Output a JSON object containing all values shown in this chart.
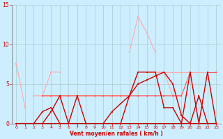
{
  "x": [
    0,
    1,
    2,
    3,
    4,
    5,
    6,
    7,
    8,
    9,
    10,
    11,
    12,
    13,
    14,
    15,
    16,
    17,
    18,
    19,
    20,
    21,
    22,
    23
  ],
  "series": [
    {
      "color": "#ffaaaa",
      "lw": 0.8,
      "values": [
        7.5,
        2.0,
        null,
        null,
        null,
        null,
        null,
        null,
        null,
        null,
        null,
        null,
        null,
        9.0,
        13.5,
        11.5,
        9.0,
        null,
        null,
        null,
        null,
        null,
        null,
        null
      ]
    },
    {
      "color": "#ffaaaa",
      "lw": 0.8,
      "values": [
        null,
        null,
        null,
        3.5,
        6.5,
        6.5,
        null,
        null,
        null,
        null,
        null,
        null,
        null,
        null,
        null,
        null,
        null,
        null,
        null,
        null,
        null,
        null,
        null,
        null
      ]
    },
    {
      "color": "#ffaaaa",
      "lw": 0.8,
      "values": [
        null,
        null,
        3.5,
        3.5,
        3.5,
        3.5,
        3.5,
        3.5,
        3.5,
        3.5,
        3.5,
        3.5,
        3.5,
        3.5,
        6.5,
        6.5,
        6.5,
        6.5,
        3.5,
        3.5,
        null,
        null,
        null,
        null
      ]
    },
    {
      "color": "#ffaaaa",
      "lw": 0.8,
      "values": [
        null,
        null,
        null,
        null,
        null,
        null,
        null,
        null,
        null,
        null,
        null,
        null,
        null,
        null,
        null,
        6.5,
        6.5,
        6.5,
        6.5,
        6.5,
        6.5,
        6.5,
        6.5,
        6.5
      ]
    },
    {
      "color": "#ff5555",
      "lw": 0.8,
      "values": [
        null,
        null,
        null,
        3.5,
        3.5,
        3.5,
        3.5,
        3.5,
        3.5,
        3.5,
        3.5,
        3.5,
        3.5,
        3.5,
        3.5,
        3.5,
        3.5,
        3.5,
        3.5,
        3.5,
        6.5,
        null,
        6.5,
        6.5
      ]
    },
    {
      "color": "#cc0000",
      "lw": 1.0,
      "values": [
        0,
        0,
        0,
        0,
        1.5,
        3.5,
        0,
        3.5,
        0,
        0,
        0,
        0,
        0,
        3.5,
        6.5,
        6.5,
        6.5,
        2.0,
        2.0,
        0,
        0,
        3.5,
        0,
        0
      ]
    },
    {
      "color": "#cc0000",
      "lw": 1.0,
      "values": [
        0,
        0,
        0,
        0,
        0,
        0,
        0,
        0,
        0,
        0,
        0,
        0,
        0,
        0,
        0,
        0,
        0,
        0,
        0,
        0,
        6.5,
        0,
        6.5,
        0
      ]
    },
    {
      "color": "#cc0000",
      "lw": 1.0,
      "values": [
        0,
        0,
        0,
        1.5,
        2.0,
        0,
        0,
        0,
        0,
        0,
        0,
        1.5,
        2.5,
        3.5,
        5.0,
        5.5,
        6.0,
        6.5,
        5.0,
        1.0,
        0,
        0,
        0,
        0
      ]
    }
  ],
  "ylim": [
    0,
    15
  ],
  "yticks": [
    0,
    5,
    10,
    15
  ],
  "xticks": [
    0,
    1,
    2,
    3,
    4,
    5,
    6,
    7,
    8,
    9,
    10,
    11,
    12,
    13,
    14,
    15,
    16,
    17,
    18,
    19,
    20,
    21,
    22,
    23
  ],
  "xlabel": "Vent moyen/en rafales ( km/h )",
  "bg_color": "#cceeff",
  "grid_color": "#aacccc",
  "axis_color": "#888888",
  "label_color": "#cc0000"
}
